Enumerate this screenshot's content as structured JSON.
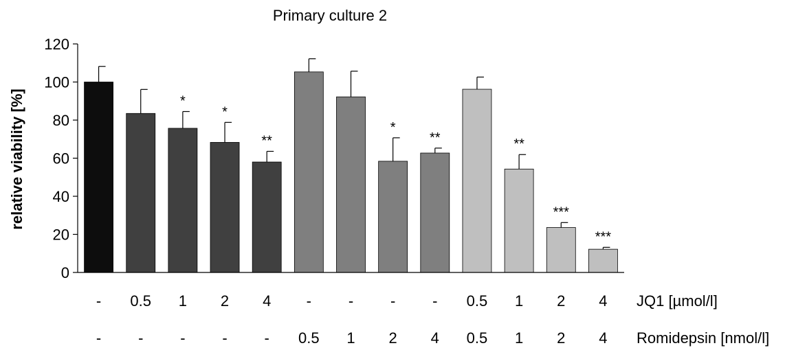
{
  "chart_data": {
    "type": "bar",
    "title": "Primary culture 2",
    "ylabel": "relative viability [%]",
    "ylim": [
      0,
      120
    ],
    "yticks": [
      0,
      20,
      40,
      60,
      80,
      100,
      120
    ],
    "grid": false,
    "legend": "none",
    "condition_rows": [
      {
        "label": "JQ1 [µmol/l]",
        "values": [
          "-",
          "0.5",
          "1",
          "2",
          "4",
          "-",
          "-",
          "-",
          "-",
          "0.5",
          "1",
          "2",
          "4"
        ]
      },
      {
        "label": "Romidepsin [nmol/l]",
        "values": [
          "-",
          "-",
          "-",
          "-",
          "-",
          "0.5",
          "1",
          "2",
          "4",
          "0.5",
          "1",
          "2",
          "4"
        ]
      }
    ],
    "values": [
      100,
      83.5,
      75.7,
      68.3,
      58,
      105.3,
      92.2,
      58.4,
      62.7,
      96.2,
      54.3,
      23.6,
      12.2
    ],
    "errors": [
      8.2,
      12.6,
      8.8,
      10.5,
      5.6,
      6.9,
      13.5,
      12.3,
      2.6,
      6.4,
      7.6,
      2.6,
      1.0
    ],
    "significance": [
      "",
      "",
      "*",
      "*",
      "**",
      "",
      "",
      "*",
      "**",
      "",
      "**",
      "***",
      "***"
    ],
    "colors": [
      "#0d0d0d",
      "#404040",
      "#404040",
      "#404040",
      "#404040",
      "#7f7f7f",
      "#7f7f7f",
      "#7f7f7f",
      "#7f7f7f",
      "#bfbfbf",
      "#bfbfbf",
      "#bfbfbf",
      "#bfbfbf"
    ]
  }
}
